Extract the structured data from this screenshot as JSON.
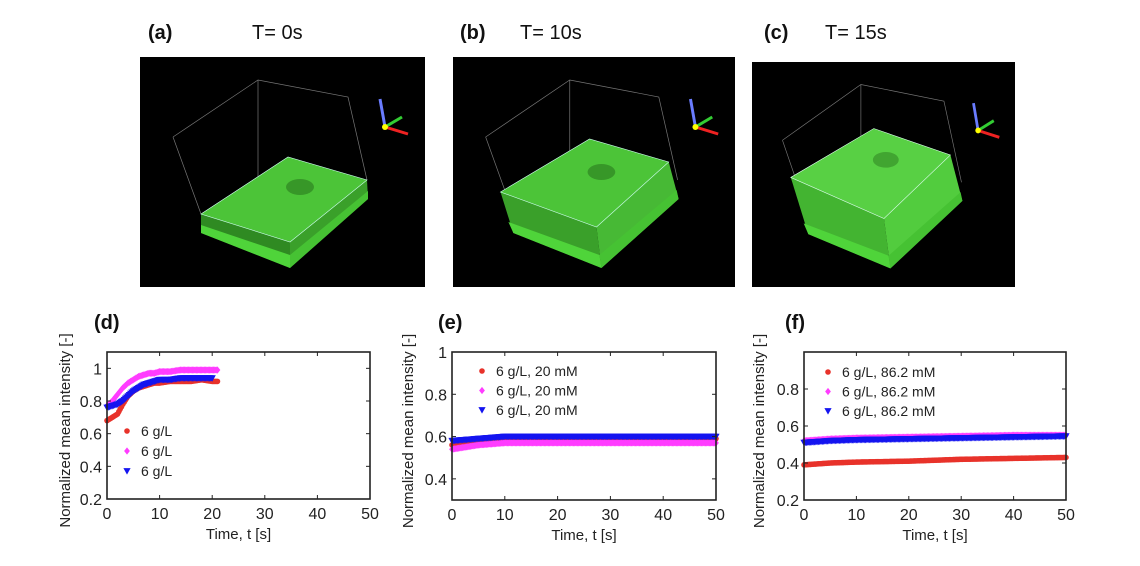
{
  "images": [
    {
      "label": "(a)",
      "time": "T= 0s"
    },
    {
      "label": "(b)",
      "time": "T= 10s"
    },
    {
      "label": "(c)",
      "time": "T= 15s"
    }
  ],
  "colors": {
    "red": "#e8322a",
    "magenta": "#ff3cff",
    "blue": "#1414f0",
    "gel": "#4fd43a"
  },
  "chart_data": [
    {
      "panel": "(d)",
      "type": "scatter",
      "xlabel": "Time, t [s]",
      "ylabel": "Normalized mean intensity [-]",
      "xlim": [
        0,
        50
      ],
      "ylim": [
        0.2,
        1.1
      ],
      "xticks": [
        0,
        10,
        20,
        30,
        40,
        50
      ],
      "yticks": [
        0.2,
        0.4,
        0.6,
        0.8,
        1
      ],
      "legend_position": "lower-left",
      "series": [
        {
          "name": "6 g/L",
          "marker": "circle",
          "color": "red",
          "x": [
            0,
            1,
            2,
            3,
            4,
            5,
            6,
            7,
            8,
            9,
            10,
            12,
            14,
            16,
            18,
            20,
            21
          ],
          "y": [
            0.68,
            0.7,
            0.72,
            0.78,
            0.83,
            0.86,
            0.88,
            0.89,
            0.9,
            0.91,
            0.91,
            0.92,
            0.92,
            0.92,
            0.93,
            0.92,
            0.92
          ]
        },
        {
          "name": "6 g/L",
          "marker": "diamond",
          "color": "magenta",
          "x": [
            0,
            1,
            2,
            3,
            4,
            5,
            6,
            7,
            8,
            9,
            10,
            12,
            14,
            16,
            18,
            20,
            21
          ],
          "y": [
            0.77,
            0.8,
            0.84,
            0.88,
            0.91,
            0.93,
            0.95,
            0.96,
            0.97,
            0.97,
            0.98,
            0.98,
            0.99,
            0.99,
            0.99,
            0.99,
            0.99
          ]
        },
        {
          "name": "6 g/L",
          "marker": "triangle-down",
          "color": "blue",
          "x": [
            0,
            1,
            2,
            3,
            4,
            5,
            6,
            7,
            8,
            9,
            10,
            12,
            14,
            16,
            18,
            20
          ],
          "y": [
            0.76,
            0.77,
            0.78,
            0.8,
            0.83,
            0.86,
            0.88,
            0.9,
            0.91,
            0.92,
            0.93,
            0.93,
            0.94,
            0.94,
            0.94,
            0.94
          ]
        }
      ]
    },
    {
      "panel": "(e)",
      "type": "scatter",
      "xlabel": "Time, t [s]",
      "ylabel": "Normalized mean intensity [-]",
      "xlim": [
        0,
        50
      ],
      "ylim": [
        0.3,
        1.0
      ],
      "xticks": [
        0,
        10,
        20,
        30,
        40,
        50
      ],
      "yticks": [
        0.4,
        0.6,
        0.8,
        1
      ],
      "legend_position": "top-left",
      "series": [
        {
          "name": "6 g/L, 20 mM",
          "marker": "circle",
          "color": "red",
          "x": [
            0,
            5,
            10,
            20,
            30,
            40,
            50
          ],
          "y": [
            0.56,
            0.57,
            0.58,
            0.58,
            0.59,
            0.59,
            0.59
          ]
        },
        {
          "name": "6 g/L, 20 mM",
          "marker": "diamond",
          "color": "magenta",
          "x": [
            0,
            5,
            10,
            20,
            30,
            40,
            50
          ],
          "y": [
            0.54,
            0.56,
            0.57,
            0.57,
            0.57,
            0.57,
            0.57
          ]
        },
        {
          "name": "6 g/L, 20 mM",
          "marker": "triangle-down",
          "color": "blue",
          "x": [
            0,
            5,
            10,
            20,
            30,
            40,
            50
          ],
          "y": [
            0.58,
            0.59,
            0.6,
            0.6,
            0.6,
            0.6,
            0.6
          ]
        }
      ]
    },
    {
      "panel": "(f)",
      "type": "scatter",
      "xlabel": "Time, t [s]",
      "ylabel": "Normalized mean intensity [-]",
      "xlim": [
        0,
        50
      ],
      "ylim": [
        0.2,
        1.0
      ],
      "xticks": [
        0,
        10,
        20,
        30,
        40,
        50
      ],
      "yticks": [
        0.2,
        0.4,
        0.6,
        0.8
      ],
      "legend_position": "top-left",
      "series": [
        {
          "name": "6 g/L, 86.2 mM",
          "marker": "circle",
          "color": "red",
          "x": [
            0,
            5,
            10,
            20,
            30,
            40,
            50
          ],
          "y": [
            0.39,
            0.4,
            0.405,
            0.41,
            0.42,
            0.425,
            0.43
          ]
        },
        {
          "name": "6 g/L, 86.2 mM",
          "marker": "diamond",
          "color": "magenta",
          "x": [
            0,
            5,
            10,
            20,
            30,
            40,
            50
          ],
          "y": [
            0.52,
            0.53,
            0.535,
            0.54,
            0.545,
            0.55,
            0.55
          ]
        },
        {
          "name": "6 g/L, 86.2 mM",
          "marker": "triangle-down",
          "color": "blue",
          "x": [
            0,
            5,
            10,
            20,
            30,
            40,
            50
          ],
          "y": [
            0.51,
            0.52,
            0.525,
            0.53,
            0.535,
            0.54,
            0.545
          ]
        }
      ]
    }
  ]
}
